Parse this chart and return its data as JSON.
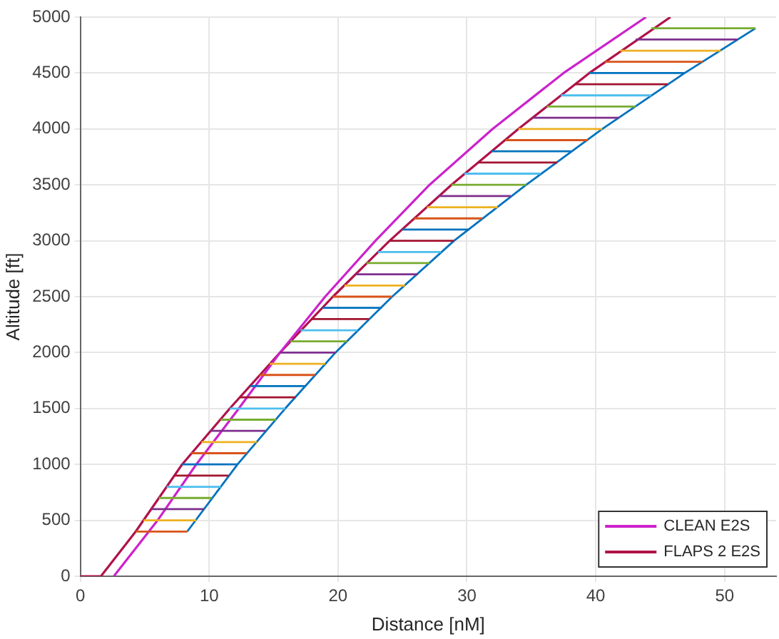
{
  "chart_data": {
    "type": "line",
    "xlabel": "Distance [nM]",
    "ylabel": "Altitude [ft]",
    "xlim": [
      0,
      54
    ],
    "xticks": [
      0,
      10,
      20,
      30,
      40,
      50
    ],
    "ylim": [
      0,
      5000
    ],
    "yticks": [
      0,
      500,
      1000,
      1500,
      2000,
      2500,
      3000,
      3500,
      4000,
      4500,
      5000
    ],
    "grid": true,
    "legend": "bottom right",
    "marker": "none",
    "line_style": "solid",
    "series": [
      {
        "color": "#0072bd",
        "x": [
          7.9,
          12.2,
          null,
          13.2,
          17.5,
          null,
          18.8,
          23.4,
          null,
          25.0,
          30.2,
          null,
          31.9,
          38.1,
          null,
          39.5,
          46.9
        ],
        "values": [
          1000,
          1000,
          null,
          1700,
          1700,
          null,
          2400,
          2400,
          null,
          3100,
          3100,
          null,
          3800,
          3800,
          null,
          4500,
          4500
        ]
      },
      {
        "color": "#d95319",
        "x": [
          4.3,
          8.3,
          null,
          8.6,
          12.9,
          null,
          13.9,
          18.2,
          null,
          19.6,
          24.2,
          null,
          25.9,
          31.2,
          null,
          33.0,
          39.4,
          null,
          40.7,
          48.3
        ],
        "values": [
          400,
          400,
          null,
          1100,
          1100,
          null,
          1800,
          1800,
          null,
          2500,
          2500,
          null,
          3200,
          3200,
          null,
          3900,
          3900,
          null,
          4600,
          4600
        ]
      },
      {
        "color": "#edb120",
        "x": [
          4.9,
          9.0,
          null,
          9.4,
          13.7,
          null,
          14.7,
          19.0,
          null,
          20.5,
          25.2,
          null,
          26.9,
          32.4,
          null,
          34.0,
          40.5,
          null,
          41.9,
          49.7
        ],
        "values": [
          500,
          500,
          null,
          1200,
          1200,
          null,
          1900,
          1900,
          null,
          2600,
          2600,
          null,
          3300,
          3300,
          null,
          4000,
          4000,
          null,
          4700,
          4700
        ]
      },
      {
        "color": "#7e2f8e",
        "x": [
          5.5,
          9.6,
          null,
          10.1,
          14.4,
          null,
          15.5,
          19.8,
          null,
          21.4,
          26.2,
          null,
          27.8,
          33.4,
          null,
          35.1,
          41.8,
          null,
          43.1,
          51.0
        ],
        "values": [
          600,
          600,
          null,
          1300,
          1300,
          null,
          2000,
          2000,
          null,
          2700,
          2700,
          null,
          3400,
          3400,
          null,
          4100,
          4100,
          null,
          4800,
          4800
        ]
      },
      {
        "color": "#77ac30",
        "x": [
          6.1,
          10.2,
          null,
          10.9,
          15.2,
          null,
          16.3,
          20.7,
          null,
          22.2,
          27.1,
          null,
          28.8,
          34.6,
          null,
          36.2,
          43.1,
          null,
          44.3,
          52.4
        ],
        "values": [
          700,
          700,
          null,
          1400,
          1400,
          null,
          2100,
          2100,
          null,
          2800,
          2800,
          null,
          3500,
          3500,
          null,
          4200,
          4200,
          null,
          4900,
          4900
        ]
      },
      {
        "color": "#4dbeee",
        "x": [
          6.7,
          10.9,
          null,
          11.6,
          15.9,
          null,
          17.1,
          21.5,
          null,
          23.1,
          28.0,
          null,
          29.8,
          35.7,
          null,
          37.3,
          44.3
        ],
        "values": [
          800,
          800,
          null,
          1500,
          1500,
          null,
          2200,
          2200,
          null,
          2900,
          2900,
          null,
          3600,
          3600,
          null,
          4300,
          4300
        ]
      },
      {
        "color": "#a2142f",
        "x": [
          7.3,
          11.5,
          null,
          12.4,
          16.7,
          null,
          17.9,
          22.4,
          null,
          24.0,
          29.0,
          null,
          30.9,
          37.0,
          null,
          38.4,
          45.6
        ],
        "values": [
          900,
          900,
          null,
          1600,
          1600,
          null,
          2300,
          2300,
          null,
          3000,
          3000,
          null,
          3700,
          3700,
          null,
          4400,
          4400
        ]
      },
      {
        "color": "#0072bd",
        "x": [
          8.3,
          12.2,
          15.9,
          19.8,
          24.2,
          29.0,
          34.6,
          40.5,
          46.9,
          52.4
        ],
        "values": [
          400,
          1000,
          1500,
          2000,
          2500,
          3000,
          3500,
          4000,
          4500,
          4900
        ]
      },
      {
        "name": "CLEAN E2S",
        "color": "#cc22cc",
        "x": [
          2.6,
          6.0,
          9.0,
          12.3,
          15.5,
          19.0,
          22.9,
          27.1,
          32.0,
          37.5,
          43.9
        ],
        "values": [
          0,
          500,
          1000,
          1500,
          2000,
          2500,
          3000,
          3500,
          4000,
          4500,
          5000
        ]
      },
      {
        "name": "FLAPS 2 E2S",
        "color": "#b0124a",
        "x": [
          0,
          1.6,
          4.3,
          7.9,
          11.6,
          15.5,
          19.6,
          24.0,
          28.8,
          34.0,
          39.5,
          45.8
        ],
        "values": [
          0,
          0,
          400,
          1000,
          1500,
          2000,
          2500,
          3000,
          3500,
          4000,
          4500,
          5000
        ]
      }
    ]
  }
}
